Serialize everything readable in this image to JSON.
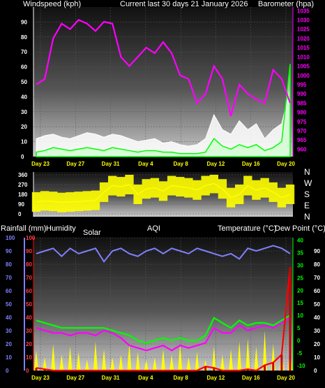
{
  "headers": {
    "wind_title": "Windspeed (kph)",
    "current_title": "Current last 30 days 21 January 2026",
    "baro_title": "Barometer (hpa)",
    "rain_title": "Rainfall (mm)",
    "humidity_title": "Humidity",
    "solar_title": "Solar",
    "aqi_title": "AQI",
    "temp_title": "Temperature (°C)",
    "dew_title": "Dew Point (°C)"
  },
  "compass": [
    "N",
    "W",
    "S",
    "E",
    "N"
  ],
  "colors": {
    "wind_gust": "#ffffff",
    "wind_avg": "#00ff00",
    "barometer": "#ff00ff",
    "direction": "#ffff00",
    "humidity": "#8080ff",
    "temperature": "#ff00ff",
    "dew_point": "#00ff00",
    "rainfall": "#ff0000",
    "solar": "#ffff00"
  },
  "chart_data": [
    {
      "type": "line",
      "x_ticks": [
        "Day 23",
        "Day 27",
        "Day 31",
        "Day 4",
        "Day 8",
        "Day 12",
        "Day 16",
        "Day 20"
      ],
      "y_left_label": "Windspeed (kph)",
      "y_left_ticks": [
        0,
        10,
        20,
        30,
        40,
        50,
        60,
        70,
        80,
        90
      ],
      "y_right_label": "Barometer (hpa)",
      "y_right_ticks": [
        960,
        965,
        970,
        975,
        980,
        985,
        990,
        995,
        1000,
        1005,
        1010,
        1015,
        1020,
        1025,
        1030,
        1035
      ],
      "days": [
        0,
        1,
        2,
        3,
        4,
        5,
        6,
        7,
        8,
        9,
        10,
        11,
        12,
        13,
        14,
        15,
        16,
        17,
        18,
        19,
        20,
        21,
        22,
        23,
        24,
        25,
        26,
        27,
        28,
        29,
        30
      ],
      "series": [
        {
          "name": "Barometer (hpa)",
          "axis": "right",
          "values": [
            995,
            998,
            1020,
            1028,
            1025,
            1030,
            1028,
            1024,
            1029,
            1028,
            1010,
            1005,
            1010,
            1015,
            1012,
            1018,
            1012,
            1000,
            998,
            985,
            990,
            1005,
            998,
            978,
            995,
            990,
            987,
            985,
            1003,
            998,
            985
          ]
        },
        {
          "name": "Windspeed gust (kph)",
          "axis": "left",
          "values": [
            12,
            14,
            15,
            13,
            12,
            14,
            16,
            15,
            13,
            15,
            14,
            12,
            10,
            11,
            12,
            9,
            10,
            8,
            7,
            8,
            12,
            28,
            18,
            15,
            24,
            18,
            22,
            12,
            18,
            22,
            45
          ]
        },
        {
          "name": "Windspeed average (kph)",
          "axis": "left",
          "values": [
            3,
            4,
            6,
            5,
            4,
            5,
            6,
            5,
            4,
            6,
            5,
            4,
            3,
            4,
            4,
            3,
            3,
            2,
            2,
            2,
            3,
            12,
            7,
            5,
            8,
            6,
            8,
            4,
            6,
            10,
            62
          ]
        }
      ]
    },
    {
      "type": "line",
      "y_ticks": [
        0,
        90,
        180,
        270,
        360
      ],
      "y_label": "Wind direction",
      "days": [
        0,
        1,
        2,
        3,
        4,
        5,
        6,
        7,
        8,
        9,
        10,
        11,
        12,
        13,
        14,
        15,
        16,
        17,
        18,
        19,
        20,
        21,
        22,
        23,
        24,
        25,
        26,
        27,
        28,
        29,
        30
      ],
      "series": [
        {
          "name": "Wind direction",
          "values": [
            110,
            120,
            115,
            105,
            110,
            115,
            120,
            125,
            200,
            260,
            250,
            270,
            180,
            230,
            240,
            210,
            260,
            250,
            240,
            220,
            260,
            280,
            230,
            150,
            180,
            260,
            220,
            240,
            200,
            150,
            180
          ]
        }
      ]
    },
    {
      "type": "line",
      "x_ticks": [
        "Day 23",
        "Day 27",
        "Day 31",
        "Day 4",
        "Day 8",
        "Day 12",
        "Day 16",
        "Day 20"
      ],
      "y_left_ticks": [
        0,
        10,
        20,
        30,
        40,
        50,
        60,
        70,
        80,
        90,
        100
      ],
      "y_right_temp_ticks": [
        -10,
        -5,
        0,
        5,
        10,
        15,
        20,
        25,
        30,
        35,
        40
      ],
      "y_right_pct_ticks": [
        0,
        10,
        20,
        30,
        40,
        50,
        60,
        70,
        80,
        90
      ],
      "days": [
        0,
        1,
        2,
        3,
        4,
        5,
        6,
        7,
        8,
        9,
        10,
        11,
        12,
        13,
        14,
        15,
        16,
        17,
        18,
        19,
        20,
        21,
        22,
        23,
        24,
        25,
        26,
        27,
        28,
        29,
        30
      ],
      "series": [
        {
          "name": "Humidity",
          "axis": "left",
          "values": [
            88,
            90,
            92,
            86,
            92,
            88,
            90,
            92,
            82,
            90,
            92,
            88,
            86,
            90,
            92,
            88,
            92,
            90,
            88,
            92,
            90,
            88,
            86,
            88,
            84,
            92,
            90,
            92,
            94,
            92,
            88
          ]
        },
        {
          "name": "Temperature (°C)",
          "axis": "temp",
          "values": [
            5,
            4,
            3,
            3,
            2,
            3,
            3,
            2,
            4,
            3,
            1,
            -2,
            -3,
            -4,
            -3,
            -2,
            -4,
            -2,
            -3,
            -2,
            -1,
            5,
            3,
            3,
            6,
            4,
            5,
            6,
            5,
            7,
            9
          ]
        },
        {
          "name": "Dew Point (°C)",
          "axis": "temp",
          "values": [
            8,
            7,
            6,
            5,
            5,
            5,
            5,
            5,
            5,
            4,
            3,
            2,
            0,
            -1,
            0,
            1,
            0,
            1,
            0,
            0,
            2,
            9,
            7,
            5,
            8,
            6,
            7,
            7,
            6,
            8,
            10
          ]
        },
        {
          "name": "Rainfall (mm)",
          "axis": "left",
          "values": [
            2,
            1,
            0,
            0,
            0,
            0,
            0,
            0,
            0,
            0,
            0,
            0,
            0,
            0,
            0,
            0,
            0,
            0,
            0,
            0,
            3,
            2,
            0,
            0,
            0,
            1,
            0,
            4,
            6,
            12,
            78
          ]
        },
        {
          "name": "Solar",
          "axis": "pct",
          "values": [
            15,
            10,
            20,
            12,
            18,
            14,
            8,
            22,
            16,
            10,
            12,
            20,
            14,
            8,
            10,
            16,
            12,
            20,
            10,
            14,
            8,
            18,
            12,
            16,
            22,
            24,
            18,
            30,
            20,
            16,
            18
          ]
        }
      ]
    }
  ]
}
